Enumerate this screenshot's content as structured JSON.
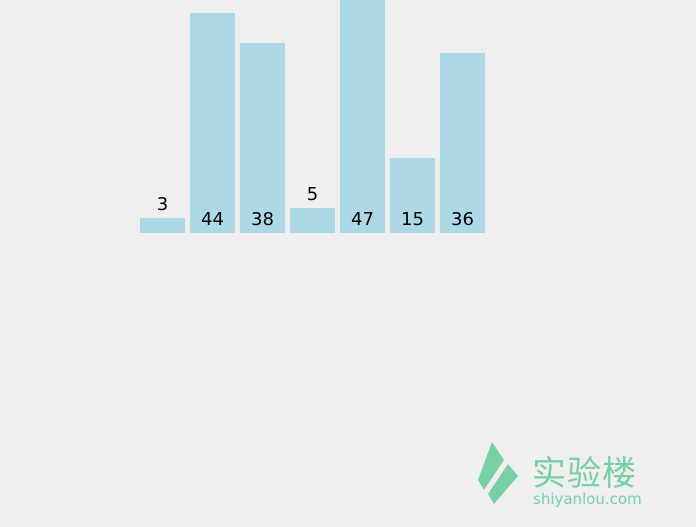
{
  "chart_data": {
    "type": "bar",
    "values": [
      3,
      44,
      38,
      5,
      47,
      15,
      36
    ],
    "data_labels": [
      "3",
      "44",
      "38",
      "5",
      "47",
      "15",
      "36"
    ],
    "bar_color": "#add8e6",
    "title": "",
    "xlabel": "",
    "ylabel": ""
  },
  "watermark": {
    "name": "实验楼",
    "url": "shiyanlou.com",
    "color": "#79cfa4"
  }
}
